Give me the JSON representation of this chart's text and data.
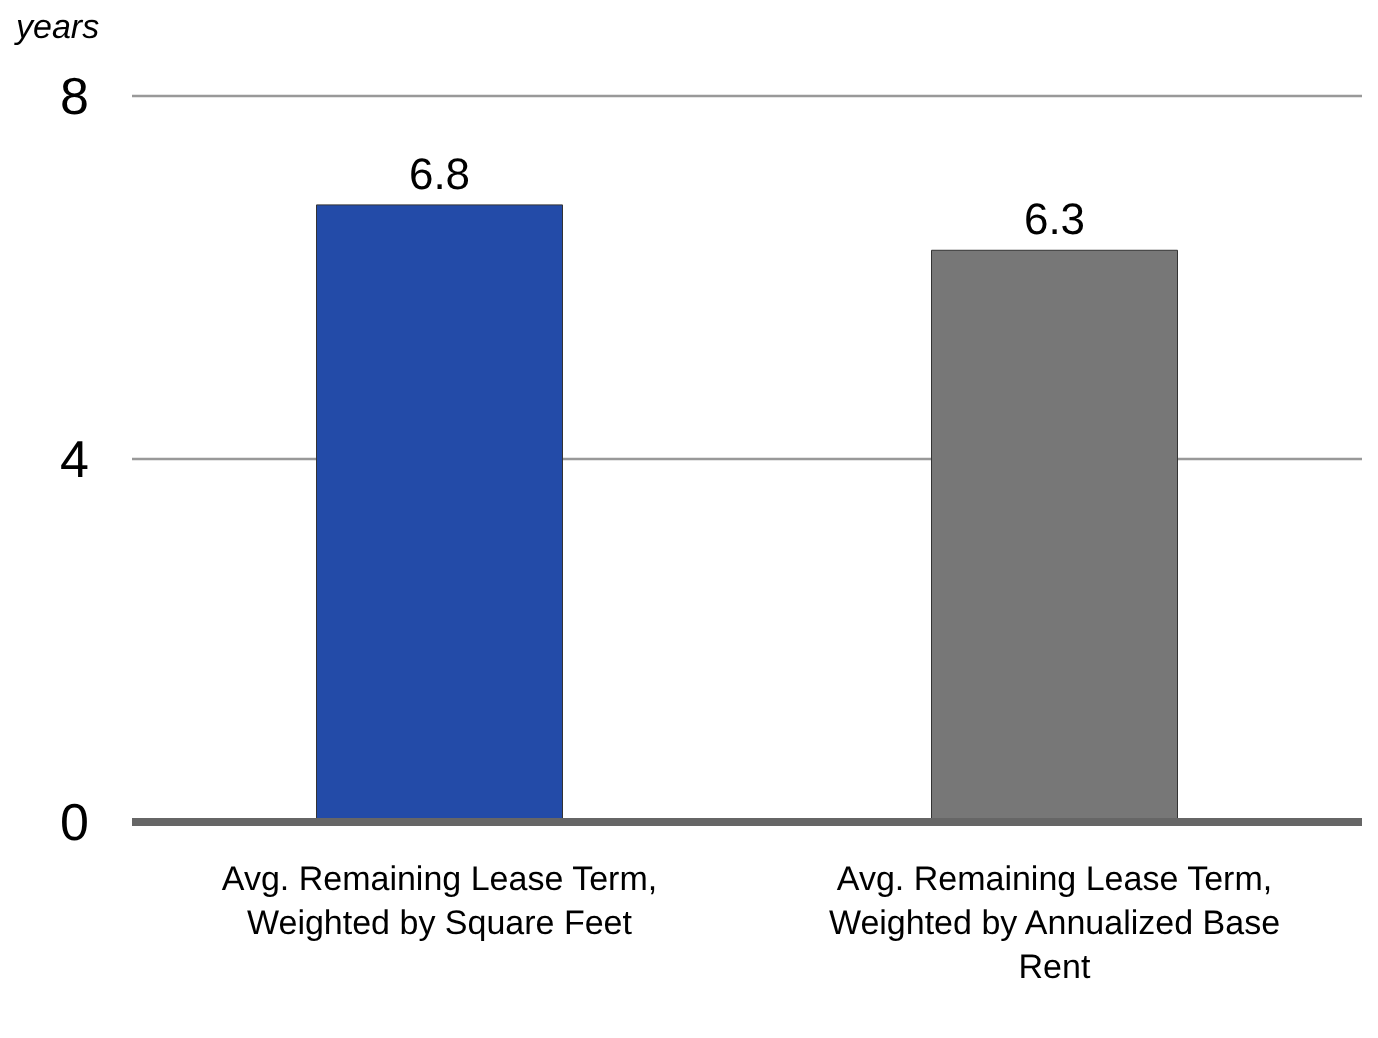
{
  "chart_data": {
    "type": "bar",
    "ylabel": "years",
    "categories": [
      "Avg. Remaining Lease Term, Weighted by Square Feet",
      "Avg. Remaining Lease Term, Weighted by Annualized Base Rent"
    ],
    "values": [
      6.8,
      6.3
    ],
    "colors": [
      "#234ba8",
      "#777777"
    ],
    "ylim": [
      0,
      8
    ],
    "yticks": [
      0,
      4,
      8
    ],
    "grid": "y",
    "data_labels": true
  }
}
